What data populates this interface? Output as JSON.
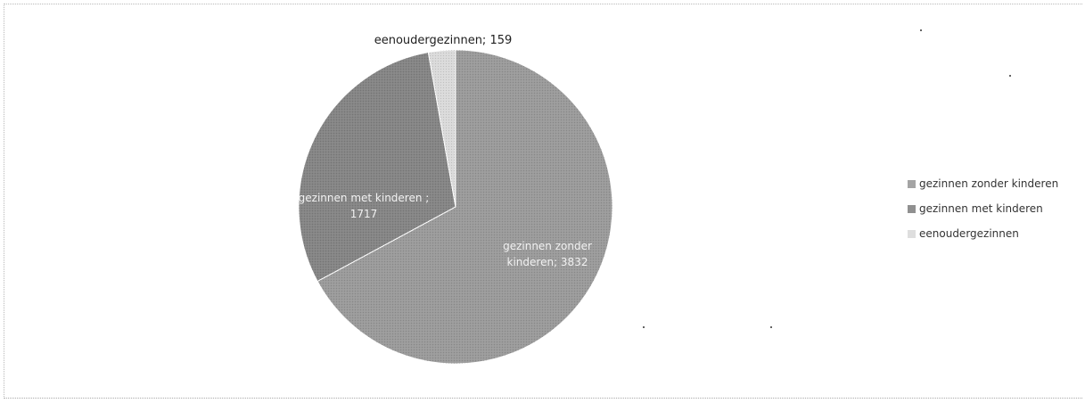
{
  "chart_data": {
    "type": "pie",
    "title": "",
    "categories": [
      "gezinnen zonder kinderen",
      "gezinnen met kinderen",
      "eenoudergezinnen"
    ],
    "values": [
      3832,
      1717,
      159
    ],
    "colors": [
      "#9a9a9a",
      "#848484",
      "#dadada"
    ],
    "start_angle_deg": 0,
    "direction": "clockwise",
    "data_labels": [
      {
        "lines": [
          "gezinnen zonder",
          "kinderen; 3832"
        ]
      },
      {
        "lines": [
          "gezinnen met kinderen ;",
          "1717"
        ]
      },
      {
        "lines": [
          "eenoudergezinnen; 159"
        ]
      }
    ],
    "legend": {
      "position": "right",
      "entries": [
        "gezinnen zonder kinderen",
        "gezinnen met kinderen",
        "eenoudergezinnen"
      ]
    }
  }
}
